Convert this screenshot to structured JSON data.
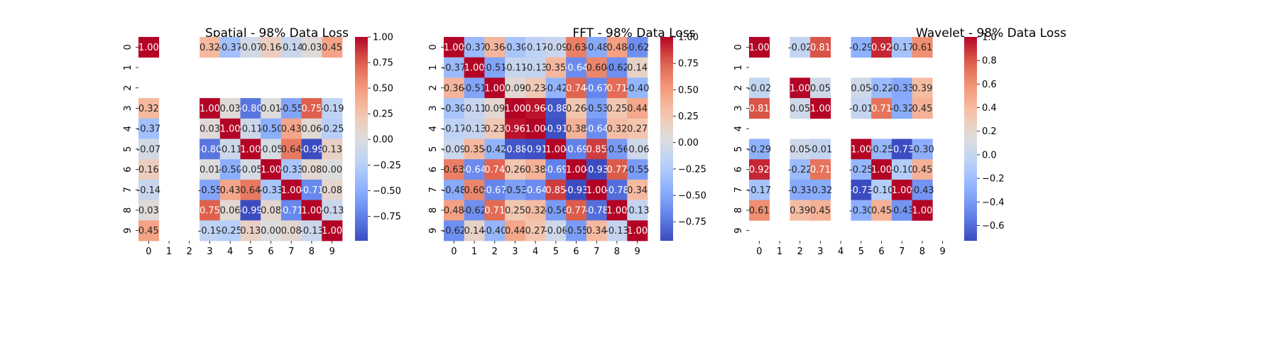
{
  "chart_data": [
    {
      "type": "heatmap",
      "title": "Spatial - 98% Data Loss",
      "x_ticks": [
        "0",
        "1",
        "2",
        "3",
        "4",
        "5",
        "6",
        "7",
        "8",
        "9"
      ],
      "y_ticks": [
        "0",
        "1",
        "2",
        "3",
        "4",
        "5",
        "6",
        "7",
        "8",
        "9"
      ],
      "colormap": "coolwarm",
      "vmin": -0.99,
      "vmax": 1.0,
      "colorbar_ticks": [
        -0.75,
        -0.5,
        -0.25,
        0,
        0.25,
        0.5,
        0.75,
        1
      ],
      "colorbar_labels": [
        "−0.75",
        "−0.50",
        "−0.25",
        "0.00",
        "0.25",
        "0.50",
        "0.75",
        "1.00"
      ],
      "matrix": [
        [
          1.0,
          null,
          null,
          0.32,
          -0.37,
          -0.07,
          0.16,
          -0.14,
          0.03,
          0.45
        ],
        [
          null,
          null,
          null,
          null,
          null,
          null,
          null,
          null,
          null,
          null
        ],
        [
          null,
          null,
          null,
          null,
          null,
          null,
          null,
          null,
          null,
          null
        ],
        [
          0.32,
          null,
          null,
          1.0,
          0.03,
          -0.8,
          0.01,
          -0.55,
          0.75,
          -0.19
        ],
        [
          -0.37,
          null,
          null,
          0.03,
          1.0,
          -0.11,
          -0.5,
          0.43,
          0.06,
          -0.25
        ],
        [
          -0.07,
          null,
          null,
          -0.8,
          -0.11,
          1.0,
          -0.05,
          0.64,
          -0.99,
          0.13
        ],
        [
          0.16,
          null,
          null,
          0.01,
          -0.5,
          -0.05,
          1.0,
          -0.33,
          0.08,
          0.0
        ],
        [
          -0.14,
          null,
          null,
          -0.55,
          0.43,
          0.64,
          -0.33,
          1.0,
          -0.71,
          0.08
        ],
        [
          0.03,
          null,
          null,
          0.75,
          0.06,
          -0.99,
          0.08,
          -0.71,
          1.0,
          -0.13
        ],
        [
          0.45,
          null,
          null,
          -0.19,
          -0.25,
          0.13,
          0.0,
          0.08,
          -0.13,
          1.0
        ]
      ],
      "labels": [
        [
          "1.00",
          null,
          null,
          "0.32",
          "-0.37",
          "-0.07",
          "0.16",
          "-0.14",
          "0.03",
          "0.45"
        ],
        [
          null,
          null,
          null,
          null,
          null,
          null,
          null,
          null,
          null,
          null
        ],
        [
          null,
          null,
          null,
          null,
          null,
          null,
          null,
          null,
          null,
          null
        ],
        [
          "0.32",
          null,
          null,
          "1.00",
          "0.03",
          "-0.80",
          "0.01",
          "-0.55",
          "0.75",
          "-0.19"
        ],
        [
          "-0.37",
          null,
          null,
          "0.03",
          "1.00",
          "-0.11",
          "-0.50",
          "0.43",
          "0.06",
          "-0.25"
        ],
        [
          "-0.07",
          null,
          null,
          "-0.80",
          "-0.11",
          "1.00",
          "-0.05",
          "0.64",
          "-0.99",
          "0.13"
        ],
        [
          "0.16",
          null,
          null,
          "0.01",
          "-0.50",
          "-0.05",
          "1.00",
          "-0.33",
          "0.08",
          "0.00"
        ],
        [
          "-0.14",
          null,
          null,
          "-0.55",
          "0.43",
          "0.64",
          "-0.33",
          "1.00",
          "-0.71",
          "0.08"
        ],
        [
          "0.03",
          null,
          null,
          "0.75",
          "0.06",
          "-0.99",
          "0.08",
          "-0.71",
          "1.00",
          "-0.13"
        ],
        [
          "0.45",
          null,
          null,
          "-0.19",
          "-0.25",
          "0.13",
          "0.00",
          "0.08",
          "-0.13",
          "1.00"
        ]
      ]
    },
    {
      "type": "heatmap",
      "title": "FFT - 98% Data Loss",
      "x_ticks": [
        "0",
        "1",
        "2",
        "3",
        "4",
        "5",
        "6",
        "7",
        "8",
        "9"
      ],
      "y_ticks": [
        "0",
        "1",
        "2",
        "3",
        "4",
        "5",
        "6",
        "7",
        "8",
        "9"
      ],
      "colormap": "coolwarm",
      "vmin": -0.93,
      "vmax": 1.0,
      "colorbar_ticks": [
        -0.75,
        -0.5,
        -0.25,
        0,
        0.25,
        0.5,
        0.75,
        1
      ],
      "colorbar_labels": [
        "−0.75",
        "−0.50",
        "−0.25",
        "0.00",
        "0.25",
        "0.50",
        "0.75",
        "1.00"
      ],
      "matrix": [
        [
          1.0,
          -0.37,
          0.36,
          -0.3,
          -0.17,
          -0.09,
          0.63,
          -0.48,
          0.48,
          -0.62
        ],
        [
          -0.37,
          1.0,
          -0.51,
          -0.11,
          -0.13,
          0.35,
          -0.64,
          0.6,
          -0.62,
          0.14
        ],
        [
          0.36,
          -0.51,
          1.0,
          0.09,
          0.23,
          -0.42,
          0.74,
          -0.67,
          0.71,
          -0.4
        ],
        [
          -0.3,
          -0.11,
          0.09,
          1.0,
          0.96,
          -0.88,
          0.26,
          -0.53,
          0.25,
          0.44
        ],
        [
          -0.17,
          -0.13,
          0.23,
          0.96,
          1.0,
          -0.91,
          0.38,
          -0.64,
          0.32,
          0.27
        ],
        [
          -0.09,
          0.35,
          -0.42,
          -0.88,
          -0.91,
          1.0,
          -0.69,
          0.85,
          -0.56,
          -0.06
        ],
        [
          0.63,
          -0.64,
          0.74,
          0.26,
          0.38,
          -0.69,
          1.0,
          -0.93,
          0.77,
          -0.55
        ],
        [
          -0.48,
          0.6,
          -0.67,
          -0.53,
          -0.64,
          0.85,
          -0.93,
          1.0,
          -0.78,
          0.34
        ],
        [
          0.48,
          -0.62,
          0.71,
          0.25,
          0.32,
          -0.56,
          0.77,
          -0.78,
          1.0,
          -0.13
        ],
        [
          -0.62,
          0.14,
          -0.4,
          0.44,
          0.27,
          -0.06,
          -0.55,
          0.34,
          -0.13,
          1.0
        ]
      ],
      "labels": [
        [
          "1.00",
          "-0.37",
          "0.36",
          "-0.30",
          "-0.17",
          "-0.09",
          "0.63",
          "-0.48",
          "0.48",
          "-0.62"
        ],
        [
          "-0.37",
          "1.00",
          "-0.51",
          "-0.11",
          "-0.13",
          "0.35",
          "-0.64",
          "0.60",
          "-0.62",
          "0.14"
        ],
        [
          "0.36",
          "-0.51",
          "1.00",
          "0.09",
          "0.23",
          "-0.42",
          "0.74",
          "-0.67",
          "0.71",
          "-0.40"
        ],
        [
          "-0.30",
          "-0.11",
          "0.09",
          "1.00",
          "0.96",
          "-0.88",
          "0.26",
          "-0.53",
          "0.25",
          "0.44"
        ],
        [
          "-0.17",
          "-0.13",
          "0.23",
          "0.96",
          "1.00",
          "-0.91",
          "0.38",
          "-0.64",
          "0.32",
          "0.27"
        ],
        [
          "-0.09",
          "0.35",
          "-0.42",
          "-0.88",
          "-0.91",
          "1.00",
          "-0.69",
          "0.85",
          "-0.56",
          "-0.06"
        ],
        [
          "0.63",
          "-0.64",
          "0.74",
          "0.26",
          "0.38",
          "-0.69",
          "1.00",
          "-0.93",
          "0.77",
          "-0.55"
        ],
        [
          "-0.48",
          "0.60",
          "-0.67",
          "-0.53",
          "-0.64",
          "0.85",
          "-0.93",
          "1.00",
          "-0.78",
          "0.34"
        ],
        [
          "0.48",
          "-0.62",
          "0.71",
          "0.25",
          "0.32",
          "-0.56",
          "0.77",
          "-0.78",
          "1.00",
          "-0.13"
        ],
        [
          "-0.62",
          "0.14",
          "-0.40",
          "0.44",
          "0.27",
          "-0.06",
          "-0.55",
          "0.34",
          "-0.13",
          "1.00"
        ]
      ]
    },
    {
      "type": "heatmap",
      "title": "Wavelet - 98% Data Loss",
      "x_ticks": [
        "0",
        "1",
        "2",
        "3",
        "4",
        "5",
        "6",
        "7",
        "8",
        "9"
      ],
      "y_ticks": [
        "0",
        "1",
        "2",
        "3",
        "4",
        "5",
        "6",
        "7",
        "8",
        "9"
      ],
      "colormap": "coolwarm",
      "vmin": -0.73,
      "vmax": 1.0,
      "colorbar_ticks": [
        -0.6,
        -0.4,
        -0.2,
        0,
        0.2,
        0.4,
        0.6,
        0.8,
        1
      ],
      "colorbar_labels": [
        "−0.6",
        "−0.4",
        "−0.2",
        "0.0",
        "0.2",
        "0.4",
        "0.6",
        "0.8",
        "1.0"
      ],
      "matrix": [
        [
          1.0,
          null,
          -0.02,
          0.81,
          null,
          -0.29,
          0.92,
          -0.17,
          0.61,
          null
        ],
        [
          null,
          null,
          null,
          null,
          null,
          null,
          null,
          null,
          null,
          null
        ],
        [
          -0.02,
          null,
          1.0,
          0.05,
          null,
          0.05,
          -0.22,
          -0.33,
          0.39,
          null
        ],
        [
          0.81,
          null,
          0.05,
          1.0,
          null,
          -0.01,
          0.71,
          -0.32,
          0.45,
          null
        ],
        [
          null,
          null,
          null,
          null,
          null,
          null,
          null,
          null,
          null,
          null
        ],
        [
          -0.29,
          null,
          0.05,
          -0.01,
          null,
          1.0,
          -0.25,
          -0.73,
          -0.3,
          null
        ],
        [
          0.92,
          null,
          -0.22,
          0.71,
          null,
          -0.25,
          1.0,
          -0.1,
          0.45,
          null
        ],
        [
          -0.17,
          null,
          -0.33,
          -0.32,
          null,
          -0.73,
          -0.1,
          1.0,
          -0.43,
          null
        ],
        [
          0.61,
          null,
          0.39,
          0.45,
          null,
          -0.3,
          0.45,
          -0.43,
          1.0,
          null
        ],
        [
          null,
          null,
          null,
          null,
          null,
          null,
          null,
          null,
          null,
          null
        ]
      ],
      "labels": [
        [
          "1.00",
          null,
          "-0.02",
          "0.81",
          null,
          "-0.29",
          "0.92",
          "-0.17",
          "0.61",
          null
        ],
        [
          null,
          null,
          null,
          null,
          null,
          null,
          null,
          null,
          null,
          null
        ],
        [
          "-0.02",
          null,
          "1.00",
          "0.05",
          null,
          "0.05",
          "-0.22",
          "-0.33",
          "0.39",
          null
        ],
        [
          "0.81",
          null,
          "0.05",
          "1.00",
          null,
          "-0.01",
          "0.71",
          "-0.32",
          "0.45",
          null
        ],
        [
          null,
          null,
          null,
          null,
          null,
          null,
          null,
          null,
          null,
          null
        ],
        [
          "-0.29",
          null,
          "0.05",
          "-0.01",
          null,
          "1.00",
          "-0.25",
          "-0.73",
          "-0.30",
          null
        ],
        [
          "0.92",
          null,
          "-0.22",
          "0.71",
          null,
          "-0.25",
          "1.00",
          "-0.10",
          "0.45",
          null
        ],
        [
          "-0.17",
          null,
          "-0.33",
          "-0.32",
          null,
          "-0.73",
          "-0.10",
          "1.00",
          "-0.43",
          null
        ],
        [
          "0.61",
          null,
          "0.39",
          "0.45",
          null,
          "-0.30",
          "0.45",
          "-0.43",
          "1.00",
          null
        ],
        [
          null,
          null,
          null,
          null,
          null,
          null,
          null,
          null,
          null,
          null
        ]
      ]
    }
  ]
}
